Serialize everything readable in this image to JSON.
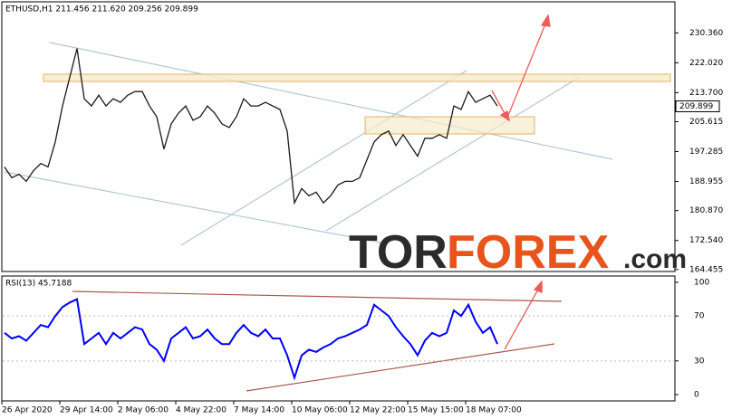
{
  "header": "ETHUSD,H1 211.456 211.620 209.256 209.899",
  "watermark": {
    "part1": "TOR",
    "part2": "FOREX",
    "part3": ".com"
  },
  "chart_data": [
    {
      "type": "line",
      "categories": [
        "26 Apr 2020",
        null,
        null,
        null,
        null,
        null,
        null,
        null,
        "29 Apr 14:00",
        null,
        null,
        null,
        null,
        null,
        null,
        null,
        "2 May 06:00",
        null,
        null,
        null,
        null,
        null,
        null,
        null,
        "4 May 22:00",
        null,
        null,
        null,
        null,
        null,
        null,
        null,
        "7 May 14:00",
        null,
        null,
        null,
        null,
        null,
        null,
        null,
        "10 May 06:00",
        null,
        null,
        null,
        null,
        null,
        null,
        null,
        "12 May 22:00",
        null,
        null,
        null,
        null,
        null,
        null,
        null,
        "15 May 15:00",
        null,
        null,
        null,
        null,
        null,
        null,
        null,
        "18 May 07:00",
        null,
        null,
        null,
        null
      ],
      "values": [
        193,
        190,
        191,
        189,
        192,
        194,
        193,
        200,
        210,
        218,
        226,
        212,
        210,
        213,
        210,
        212,
        211,
        213,
        214,
        214,
        210,
        207,
        198,
        205,
        208,
        210,
        206,
        207,
        210,
        208,
        205,
        204,
        207,
        212,
        210,
        210,
        211,
        210,
        209,
        203,
        183,
        187,
        185,
        186,
        183,
        185,
        188,
        189,
        189,
        190,
        195,
        200,
        202,
        203,
        199,
        202,
        199,
        196,
        201,
        201,
        202,
        201,
        210,
        209,
        214,
        211,
        212,
        213,
        210
      ],
      "color": "#1a1a1a",
      "ylim": [
        163.9,
        239.0
      ],
      "yticks": [
        {
          "value": 164.455,
          "label": "164.455"
        },
        {
          "value": 172.54,
          "label": "172.540"
        },
        {
          "value": 180.87,
          "label": "180.870"
        },
        188.955,
        197.285,
        205.615,
        {
          "value": 213.7,
          "label": "213.700"
        },
        {
          "value": 222.02,
          "label": "222.020"
        },
        {
          "value": 230.36,
          "label": "230.360"
        }
      ],
      "last_price": 209.899
    },
    {
      "type": "line",
      "title": "RSI(13) 45.7188",
      "values": [
        55,
        50,
        52,
        48,
        55,
        62,
        60,
        70,
        78,
        82,
        85,
        45,
        50,
        55,
        45,
        55,
        50,
        55,
        60,
        58,
        45,
        40,
        30,
        50,
        55,
        60,
        50,
        52,
        58,
        50,
        45,
        45,
        55,
        62,
        55,
        52,
        58,
        50,
        50,
        35,
        15,
        35,
        40,
        38,
        42,
        45,
        50,
        52,
        55,
        58,
        62,
        80,
        75,
        70,
        60,
        52,
        45,
        35,
        48,
        55,
        52,
        55,
        75,
        70,
        80,
        65,
        55,
        60,
        45
      ],
      "color": "#0000ff",
      "ylim": [
        -5.6,
        105.6
      ],
      "yticks": [
        0,
        30,
        70,
        100
      ]
    }
  ]
}
